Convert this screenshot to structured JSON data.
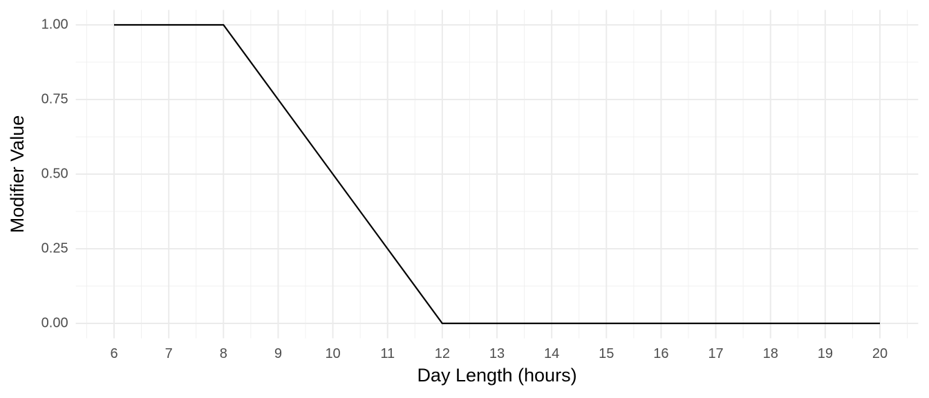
{
  "chart_data": {
    "type": "line",
    "x_label": "Day Length (hours)",
    "y_label": "Modifier Value",
    "x": [
      6,
      7,
      8,
      9,
      10,
      11,
      12,
      13,
      14,
      15,
      16,
      17,
      18,
      19,
      20
    ],
    "series": [
      {
        "color": "#000000",
        "values": [
          1,
          1,
          1,
          0.75,
          0.5,
          0.25,
          0,
          0,
          0,
          0,
          0,
          0,
          0,
          0,
          0
        ]
      }
    ],
    "xlim": [
      5.3,
      20.7
    ],
    "ylim": [
      -0.05,
      1.05
    ],
    "xticks": [
      6,
      7,
      8,
      9,
      10,
      11,
      12,
      13,
      14,
      15,
      16,
      17,
      18,
      19,
      20
    ],
    "yticks": [
      {
        "value": 0,
        "label": "0.00"
      },
      {
        "value": 0.25,
        "label": "0.25"
      },
      {
        "value": 0.5,
        "label": "0.50"
      },
      {
        "value": 0.75,
        "label": "0.75"
      },
      {
        "value": 1,
        "label": "1.00"
      }
    ],
    "grid": true
  }
}
